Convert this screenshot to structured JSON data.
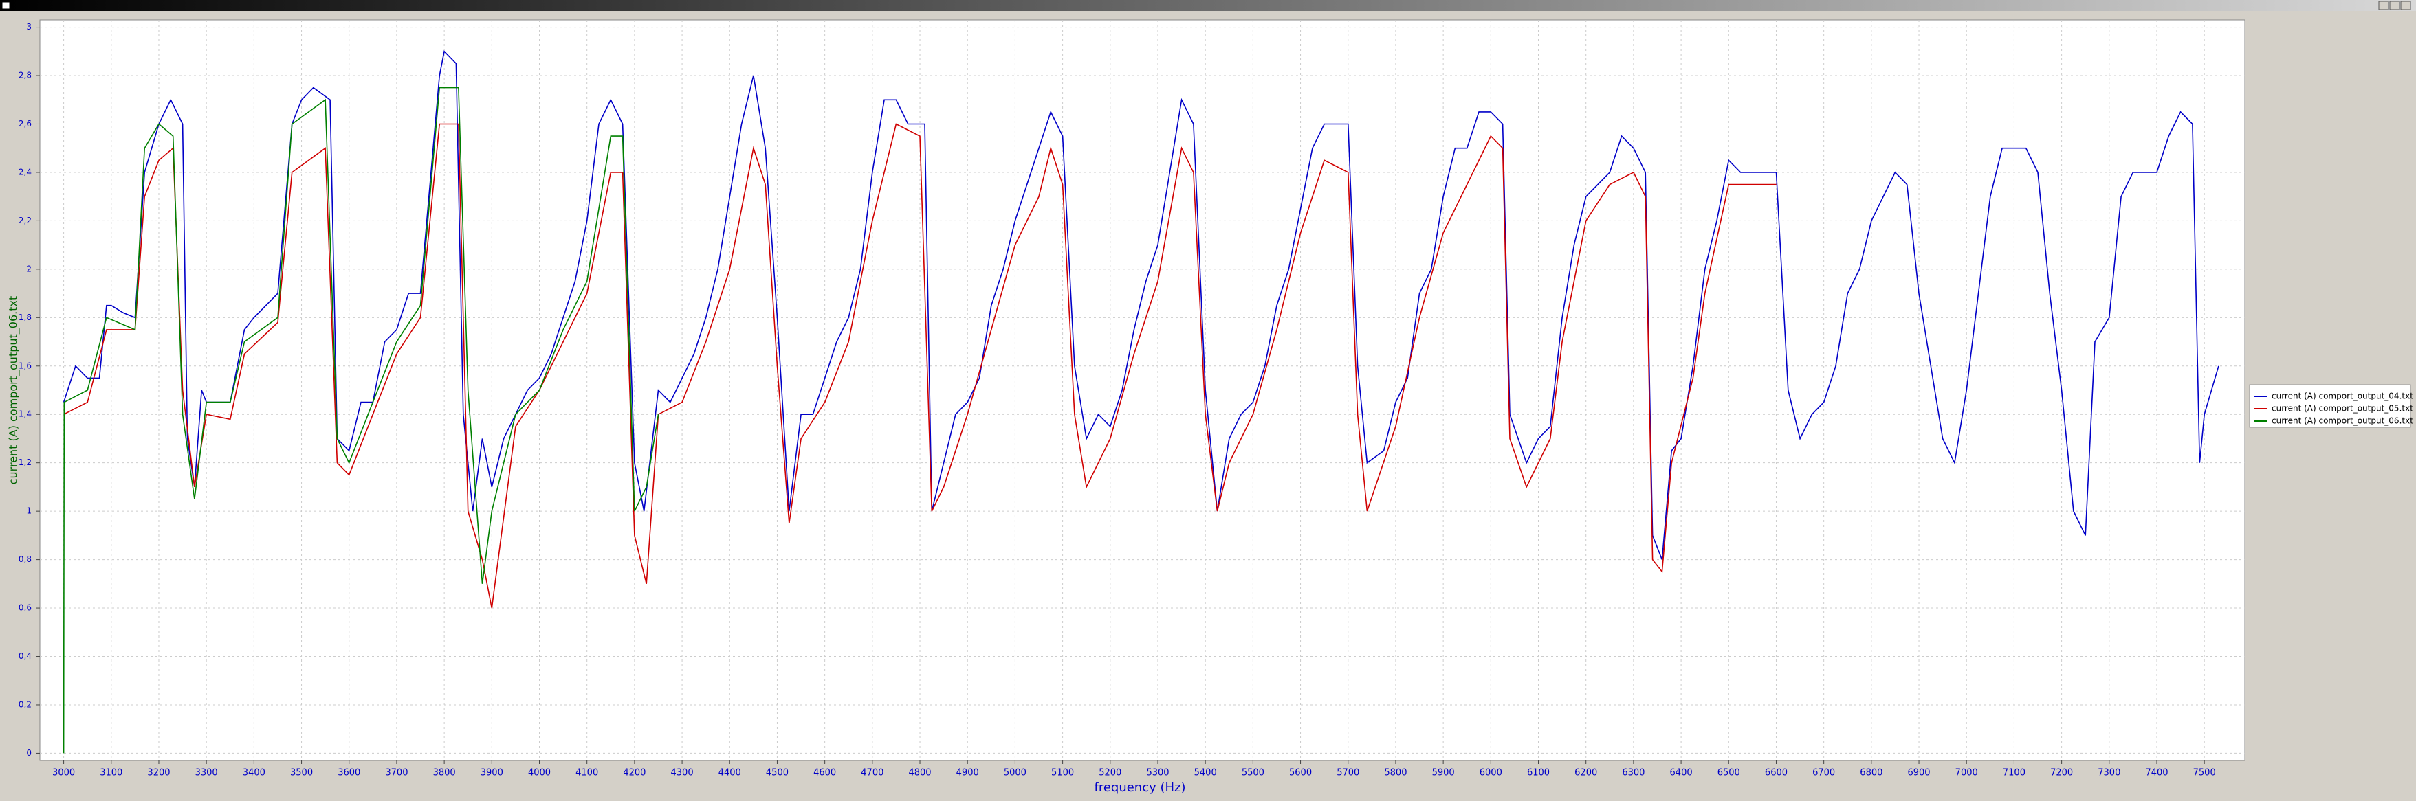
{
  "chart_data": {
    "type": "line",
    "x_label": "frequency (Hz)",
    "y_label": "current (A) comport_output_06.txt",
    "xlim": [
      2950,
      7585
    ],
    "ylim": [
      -0.03,
      3.03
    ],
    "grid": true,
    "legend": "right",
    "xticks": [
      3000,
      3100,
      3200,
      3300,
      3400,
      3500,
      3600,
      3700,
      3800,
      3900,
      4000,
      4100,
      4200,
      4300,
      4400,
      4500,
      4600,
      4700,
      4800,
      4900,
      5000,
      5100,
      5200,
      5300,
      5400,
      5500,
      5600,
      5700,
      5800,
      5900,
      6000,
      6100,
      6200,
      6300,
      6400,
      6500,
      6600,
      6700,
      6800,
      6900,
      7000,
      7100,
      7200,
      7300,
      7400,
      7500
    ],
    "yticks": [
      0,
      {
        "value": 0.2,
        "label": "0,2"
      },
      {
        "value": 0.4,
        "label": "0,4"
      },
      {
        "value": 0.6,
        "label": "0,6"
      },
      {
        "value": 0.8,
        "label": "0,8"
      },
      1,
      {
        "value": 1.2,
        "label": "1,2"
      },
      {
        "value": 1.4,
        "label": "1,4"
      },
      {
        "value": 1.6,
        "label": "1,6"
      },
      {
        "value": 1.8,
        "label": "1,8"
      },
      2,
      {
        "value": 2.2,
        "label": "2,2"
      },
      {
        "value": 2.4,
        "label": "2,4"
      },
      {
        "value": 2.6,
        "label": "2,6"
      },
      {
        "value": 2.8,
        "label": "2,8"
      },
      3
    ],
    "series": [
      {
        "name": "current (A) comport_output_04.txt",
        "color": "#0000c8",
        "x": [
          3000,
          3025,
          3050,
          3075,
          3090,
          3100,
          3125,
          3150,
          3170,
          3200,
          3225,
          3250,
          3260,
          3275,
          3290,
          3300,
          3325,
          3350,
          3380,
          3400,
          3425,
          3450,
          3480,
          3500,
          3525,
          3560,
          3575,
          3600,
          3625,
          3650,
          3675,
          3700,
          3725,
          3750,
          3790,
          3800,
          3825,
          3840,
          3860,
          3880,
          3900,
          3925,
          3950,
          3975,
          4000,
          4025,
          4050,
          4075,
          4100,
          4125,
          4150,
          4175,
          4200,
          4220,
          4250,
          4275,
          4300,
          4325,
          4350,
          4375,
          4400,
          4425,
          4450,
          4475,
          4500,
          4525,
          4550,
          4575,
          4600,
          4625,
          4650,
          4675,
          4700,
          4725,
          4750,
          4775,
          4810,
          4825,
          4850,
          4875,
          4900,
          4925,
          4950,
          4975,
          5000,
          5025,
          5050,
          5075,
          5100,
          5125,
          5150,
          5175,
          5200,
          5225,
          5250,
          5275,
          5300,
          5325,
          5350,
          5375,
          5400,
          5425,
          5450,
          5475,
          5500,
          5525,
          5550,
          5575,
          5600,
          5625,
          5650,
          5675,
          5700,
          5720,
          5740,
          5775,
          5800,
          5825,
          5850,
          5875,
          5900,
          5925,
          5950,
          5975,
          6000,
          6025,
          6040,
          6075,
          6100,
          6125,
          6150,
          6175,
          6200,
          6225,
          6250,
          6275,
          6300,
          6325,
          6340,
          6360,
          6380,
          6400,
          6425,
          6450,
          6475,
          6500,
          6525,
          6550,
          6575,
          6600,
          6625,
          6650,
          6675,
          6700,
          6725,
          6750,
          6775,
          6800,
          6825,
          6850,
          6875,
          6900,
          6925,
          6950,
          6975,
          7000,
          7025,
          7050,
          7075,
          7100,
          7125,
          7150,
          7175,
          7200,
          7225,
          7250,
          7270,
          7300,
          7325,
          7350,
          7375,
          7400,
          7425,
          7450,
          7475,
          7490,
          7500,
          7530
        ],
        "values": [
          1.45,
          1.6,
          1.55,
          1.55,
          1.85,
          1.85,
          1.82,
          1.8,
          2.4,
          2.6,
          2.7,
          2.6,
          1.3,
          1.1,
          1.5,
          1.45,
          1.45,
          1.45,
          1.75,
          1.8,
          1.85,
          1.9,
          2.6,
          2.7,
          2.75,
          2.7,
          1.3,
          1.25,
          1.45,
          1.45,
          1.7,
          1.75,
          1.9,
          1.9,
          2.8,
          2.9,
          2.85,
          1.4,
          1.0,
          1.3,
          1.1,
          1.3,
          1.4,
          1.5,
          1.55,
          1.65,
          1.8,
          1.95,
          2.2,
          2.6,
          2.7,
          2.6,
          1.2,
          1.0,
          1.5,
          1.45,
          1.55,
          1.65,
          1.8,
          2.0,
          2.3,
          2.6,
          2.8,
          2.5,
          1.8,
          1.0,
          1.4,
          1.4,
          1.55,
          1.7,
          1.8,
          2.0,
          2.4,
          2.7,
          2.7,
          2.6,
          2.6,
          1.0,
          1.2,
          1.4,
          1.45,
          1.55,
          1.85,
          2.0,
          2.2,
          2.35,
          2.5,
          2.65,
          2.55,
          1.6,
          1.3,
          1.4,
          1.35,
          1.5,
          1.75,
          1.95,
          2.1,
          2.4,
          2.7,
          2.6,
          1.5,
          1.0,
          1.3,
          1.4,
          1.45,
          1.6,
          1.85,
          2.0,
          2.25,
          2.5,
          2.6,
          2.6,
          2.6,
          1.6,
          1.2,
          1.25,
          1.45,
          1.55,
          1.9,
          2.0,
          2.3,
          2.5,
          2.5,
          2.65,
          2.65,
          2.6,
          1.4,
          1.2,
          1.3,
          1.35,
          1.8,
          2.1,
          2.3,
          2.35,
          2.4,
          2.55,
          2.5,
          2.4,
          0.9,
          0.8,
          1.25,
          1.3,
          1.6,
          2.0,
          2.2,
          2.45,
          2.4,
          2.4,
          2.4,
          2.4,
          1.5,
          1.3,
          1.4,
          1.45,
          1.6,
          1.9,
          2.0,
          2.2,
          2.3,
          2.4,
          2.35,
          1.9,
          1.6,
          1.3,
          1.2,
          1.5,
          1.9,
          2.3,
          2.5,
          2.5,
          2.5,
          2.4,
          1.9,
          1.5,
          1.0,
          0.9,
          1.7,
          1.8,
          2.3,
          2.4,
          2.4,
          2.4,
          2.55,
          2.65,
          2.6,
          1.2,
          1.4,
          1.6
        ]
      },
      {
        "name": "current (A) comport_output_05.txt",
        "color": "#d00000",
        "x": [
          3000,
          3050,
          3090,
          3150,
          3170,
          3200,
          3230,
          3250,
          3275,
          3300,
          3350,
          3380,
          3450,
          3480,
          3550,
          3575,
          3600,
          3650,
          3700,
          3750,
          3790,
          3830,
          3850,
          3880,
          3900,
          3950,
          4000,
          4050,
          4100,
          4150,
          4175,
          4200,
          4225,
          4250,
          4300,
          4350,
          4400,
          4450,
          4475,
          4500,
          4525,
          4550,
          4600,
          4650,
          4700,
          4750,
          4800,
          4825,
          4850,
          4900,
          4950,
          5000,
          5050,
          5075,
          5100,
          5125,
          5150,
          5200,
          5250,
          5300,
          5350,
          5375,
          5400,
          5425,
          5450,
          5500,
          5550,
          5600,
          5650,
          5700,
          5720,
          5740,
          5800,
          5850,
          5900,
          5950,
          6000,
          6025,
          6040,
          6075,
          6125,
          6150,
          6200,
          6250,
          6300,
          6325,
          6340,
          6360,
          6380,
          6425,
          6450,
          6500,
          6550,
          6600
        ],
        "values": [
          1.4,
          1.45,
          1.75,
          1.75,
          2.3,
          2.45,
          2.5,
          1.5,
          1.1,
          1.4,
          1.38,
          1.65,
          1.78,
          2.4,
          2.5,
          1.2,
          1.15,
          1.4,
          1.65,
          1.8,
          2.6,
          2.6,
          1.0,
          0.8,
          0.6,
          1.35,
          1.5,
          1.7,
          1.9,
          2.4,
          2.4,
          0.9,
          0.7,
          1.4,
          1.45,
          1.7,
          2.0,
          2.5,
          2.35,
          1.6,
          0.95,
          1.3,
          1.45,
          1.7,
          2.2,
          2.6,
          2.55,
          1.0,
          1.1,
          1.4,
          1.75,
          2.1,
          2.3,
          2.5,
          2.35,
          1.4,
          1.1,
          1.3,
          1.65,
          1.95,
          2.5,
          2.4,
          1.4,
          1.0,
          1.2,
          1.4,
          1.75,
          2.15,
          2.45,
          2.4,
          1.4,
          1.0,
          1.35,
          1.8,
          2.15,
          2.35,
          2.55,
          2.5,
          1.3,
          1.1,
          1.3,
          1.7,
          2.2,
          2.35,
          2.4,
          2.3,
          0.8,
          0.75,
          1.2,
          1.55,
          1.9,
          2.35,
          2.35,
          2.35
        ]
      },
      {
        "name": "current (A) comport_output_06.txt",
        "color": "#008000",
        "x": [
          3000,
          3001,
          3050,
          3090,
          3150,
          3170,
          3200,
          3230,
          3250,
          3275,
          3300,
          3350,
          3380,
          3450,
          3480,
          3550,
          3575,
          3600,
          3650,
          3700,
          3750,
          3790,
          3830,
          3850,
          3880,
          3900,
          3950,
          4000,
          4050,
          4100,
          4150,
          4175,
          4200,
          4225,
          4250
        ],
        "values": [
          0,
          1.45,
          1.5,
          1.8,
          1.75,
          2.5,
          2.6,
          2.55,
          1.4,
          1.05,
          1.45,
          1.45,
          1.7,
          1.8,
          2.6,
          2.7,
          1.3,
          1.2,
          1.45,
          1.7,
          1.85,
          2.75,
          2.75,
          1.5,
          0.7,
          1.0,
          1.4,
          1.5,
          1.75,
          1.95,
          2.55,
          2.55,
          1.0,
          1.1,
          1.4
        ]
      }
    ]
  }
}
